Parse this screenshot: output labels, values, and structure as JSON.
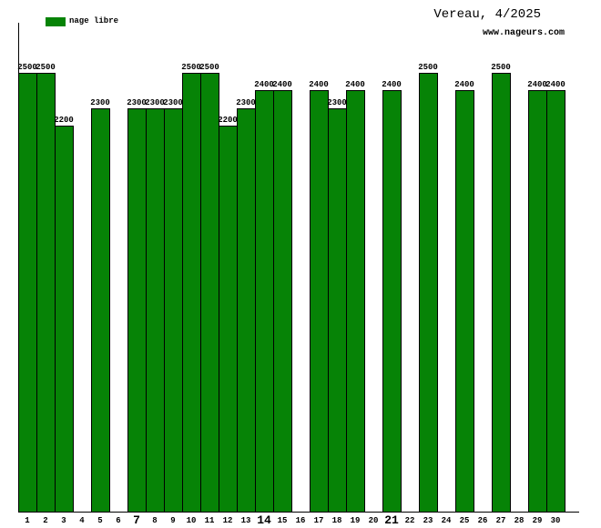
{
  "header": {
    "title": "Vereau, 4/2025",
    "watermark": "www.nageurs.com"
  },
  "legend": {
    "label": "nage libre",
    "color": "#068306"
  },
  "chart_data": {
    "type": "bar",
    "title": "Vereau, 4/2025",
    "watermark": "www.nageurs.com",
    "legend_entries": [
      {
        "name": "nage libre",
        "color": "#068306"
      }
    ],
    "xlabel": "",
    "ylabel": "",
    "categories": [
      1,
      2,
      3,
      4,
      5,
      6,
      7,
      8,
      9,
      10,
      11,
      12,
      13,
      14,
      15,
      16,
      17,
      18,
      19,
      20,
      21,
      22,
      23,
      24,
      25,
      26,
      27,
      28,
      29,
      30
    ],
    "values": [
      2500,
      2500,
      2200,
      null,
      2300,
      null,
      2300,
      2300,
      2300,
      2500,
      2500,
      2200,
      2300,
      2400,
      2400,
      null,
      2400,
      2300,
      2400,
      null,
      2400,
      null,
      2500,
      null,
      2400,
      null,
      2500,
      null,
      2400,
      2400
    ],
    "bold_categories": [
      7,
      14,
      21
    ],
    "value_labels_shown": true,
    "ylim": [
      0,
      2800
    ],
    "y_axis_ticks": [],
    "grid": false,
    "legend_position": "top-left",
    "bar_color": "#068306",
    "bar_border_color": "#000000",
    "background_color": "#ffffff"
  }
}
